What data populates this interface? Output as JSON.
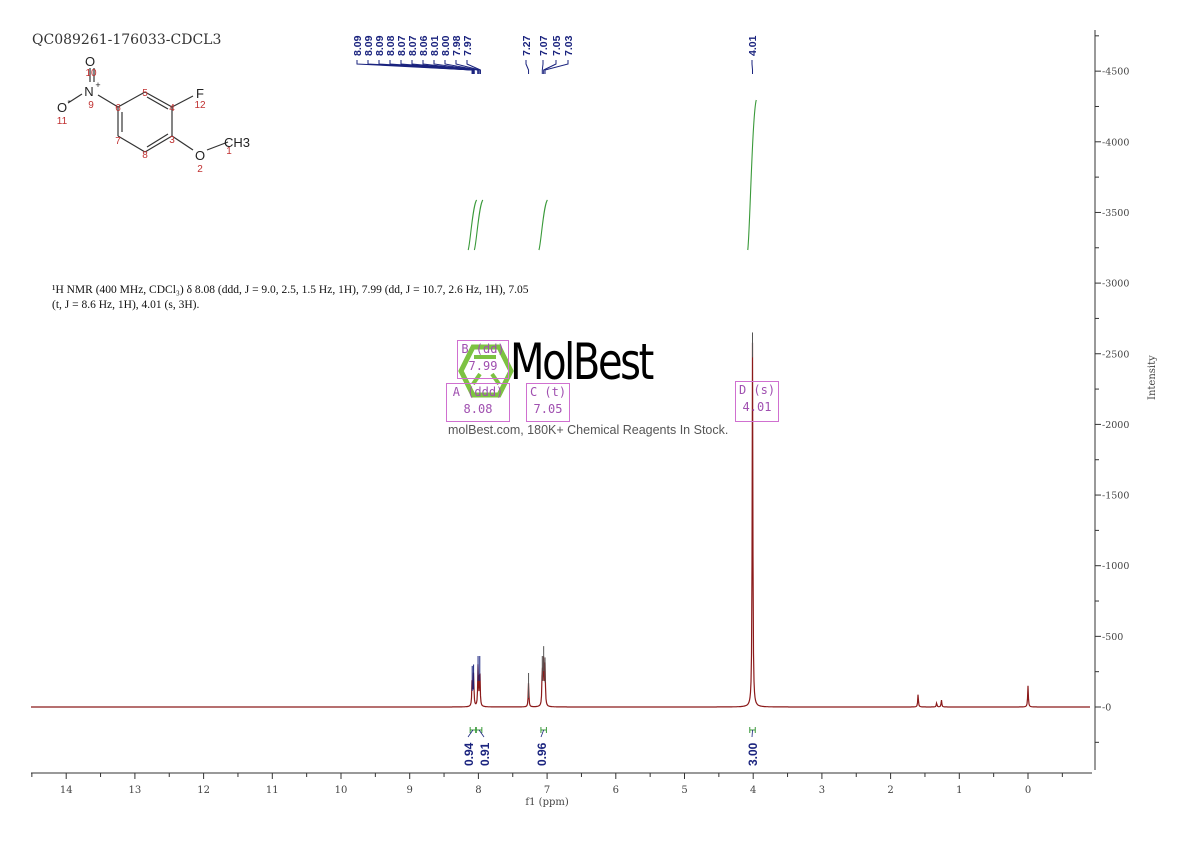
{
  "sample_id": "QC089261-176033-CDCL3",
  "description": [
    "¹H NMR (400 MHz, CDCl₃) δ 8.08 (ddd, J = 9.0, 2.5, 1.5 Hz, 1H), 7.99 (dd, J = 10.7, 2.6 Hz, 1H), 7.05",
    "(t, J = 8.6 Hz, 1H), 4.01 (s, 3H)."
  ],
  "molecule": {
    "atoms": {
      "O10": "O",
      "N9": "N",
      "O11": "O",
      "F12": "F",
      "O2": "O",
      "CH3": "CH3"
    },
    "numbers": [
      "1",
      "2",
      "3",
      "4",
      "5",
      "6",
      "7",
      "8",
      "9",
      "10",
      "11",
      "12"
    ]
  },
  "multiplets": [
    {
      "label": "B (dd)",
      "shift": "7.99"
    },
    {
      "label": "A (ddd)",
      "shift": "8.08"
    },
    {
      "label": "C (t)",
      "shift": "7.05"
    },
    {
      "label": "D (s)",
      "shift": "4.01"
    }
  ],
  "watermark": {
    "logo": "MolBest",
    "text": "molBest.com, 180K+ Chemical Reagents In Stock."
  },
  "colors": {
    "spectrum": "#8b1a1a",
    "peak_labels": "#1a237e",
    "integral": "#3a9a3a",
    "multiplet_box": "#d070d0",
    "logo_green": "#7dc242"
  },
  "chart_data": {
    "type": "line",
    "xlabel": "f1 (ppm)",
    "ylabel": "Intensity",
    "xlim": [
      14.5,
      -0.9
    ],
    "ylim": [
      -450,
      4800
    ],
    "x_ticks": [
      "14",
      "13",
      "12",
      "11",
      "10",
      "9",
      "8",
      "7",
      "6",
      "5",
      "4",
      "3",
      "2",
      "1",
      "0"
    ],
    "y_ticks": [
      "0",
      "500",
      "1000",
      "1500",
      "2000",
      "2500",
      "3000",
      "3500",
      "4000",
      "4500"
    ],
    "peak_labels": [
      "8.09",
      "8.09",
      "8.09",
      "8.08",
      "8.07",
      "8.07",
      "8.06",
      "8.01",
      "8.00",
      "7.98",
      "7.97",
      "7.27",
      "7.07",
      "7.05",
      "7.03",
      "4.01"
    ],
    "peaks": [
      {
        "ppm": 8.09,
        "intensity": 220
      },
      {
        "ppm": 8.07,
        "intensity": 230
      },
      {
        "ppm": 8.005,
        "intensity": 290
      },
      {
        "ppm": 7.98,
        "intensity": 290
      },
      {
        "ppm": 7.27,
        "intensity": 170
      },
      {
        "ppm": 7.07,
        "intensity": 290
      },
      {
        "ppm": 7.05,
        "intensity": 360
      },
      {
        "ppm": 7.03,
        "intensity": 280
      },
      {
        "ppm": 4.01,
        "intensity": 2580
      },
      {
        "ppm": 1.6,
        "intensity": 90
      },
      {
        "ppm": 1.33,
        "intensity": 30
      },
      {
        "ppm": 1.26,
        "intensity": 50
      },
      {
        "ppm": 0.0,
        "intensity": 150
      }
    ],
    "integrals": [
      {
        "from": 8.12,
        "to": 8.04,
        "value": "0.94"
      },
      {
        "from": 8.03,
        "to": 7.95,
        "value": "0.91"
      },
      {
        "from": 7.09,
        "to": 7.01,
        "value": "0.96"
      },
      {
        "from": 4.05,
        "to": 3.97,
        "value": "3.00"
      }
    ]
  }
}
